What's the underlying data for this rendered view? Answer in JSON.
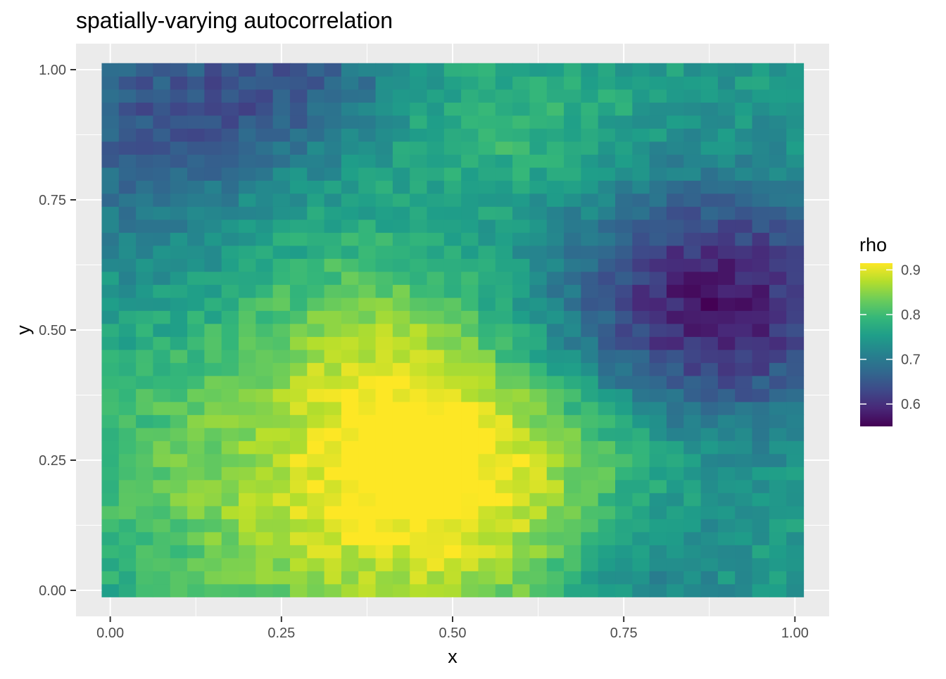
{
  "chart_data": {
    "type": "heatmap",
    "title": "spatially-varying autocorrelation",
    "xlabel": "x",
    "ylabel": "y",
    "xlim": [
      -0.05,
      1.05
    ],
    "ylim": [
      -0.05,
      1.05
    ],
    "x_ticks": [
      {
        "value": 0.0,
        "label": "0.00"
      },
      {
        "value": 0.25,
        "label": "0.25"
      },
      {
        "value": 0.5,
        "label": "0.50"
      },
      {
        "value": 0.75,
        "label": "0.75"
      },
      {
        "value": 1.0,
        "label": "1.00"
      }
    ],
    "y_ticks": [
      {
        "value": 0.0,
        "label": "0.00"
      },
      {
        "value": 0.25,
        "label": "0.25"
      },
      {
        "value": 0.5,
        "label": "0.50"
      },
      {
        "value": 0.75,
        "label": "0.75"
      },
      {
        "value": 1.0,
        "label": "1.00"
      }
    ],
    "grid": true,
    "background_color": "#EBEBEB",
    "grid_color": "#FFFFFF",
    "legend": {
      "title": "rho",
      "position": "right",
      "range": [
        0.55,
        0.915
      ],
      "ticks": [
        {
          "value": 0.6,
          "label": "0.6"
        },
        {
          "value": 0.7,
          "label": "0.7"
        },
        {
          "value": 0.8,
          "label": "0.8"
        },
        {
          "value": 0.9,
          "label": "0.9"
        }
      ]
    },
    "colormap": "viridis",
    "colormap_stops": [
      "#440154",
      "#482878",
      "#3E4A89",
      "#31688E",
      "#26828E",
      "#1F9E89",
      "#35B779",
      "#6DCD59",
      "#B4DE2C",
      "#FDE725"
    ],
    "grid_x": {
      "start": 0.0,
      "step": 0.025,
      "count": 41
    },
    "grid_y": {
      "start": 0.0,
      "step": 0.025,
      "count": 41
    },
    "field_description": "rho over [0,1]x[0,1]; bright yellow cluster (~0.9) near x 0.35-0.6, y 0.05-0.5; dark purple (~0.56-0.62) toward x 0.75-1.0, y 0.4-0.7; teal/blue (~0.68-0.72) along the top-left edge",
    "field_model": {
      "base": 0.75,
      "terms": [
        {
          "amp": 0.13,
          "cx": 0.45,
          "cy": 0.12,
          "sx": 0.22,
          "sy": 0.18
        },
        {
          "amp": 0.09,
          "cx": 0.4,
          "cy": 0.45,
          "sx": 0.12,
          "sy": 0.15
        },
        {
          "amp": 0.07,
          "cx": 0.55,
          "cy": 0.28,
          "sx": 0.15,
          "sy": 0.12
        },
        {
          "amp": 0.05,
          "cx": 0.12,
          "cy": 0.3,
          "sx": 0.18,
          "sy": 0.22
        },
        {
          "amp": 0.05,
          "cx": 0.55,
          "cy": 0.9,
          "sx": 0.15,
          "sy": 0.1
        },
        {
          "amp": -0.18,
          "cx": 0.88,
          "cy": 0.55,
          "sx": 0.15,
          "sy": 0.16
        },
        {
          "amp": -0.09,
          "cx": 0.1,
          "cy": 0.93,
          "sx": 0.2,
          "sy": 0.12
        },
        {
          "amp": -0.05,
          "cx": 0.3,
          "cy": 0.98,
          "sx": 0.12,
          "sy": 0.08
        },
        {
          "amp": -0.06,
          "cx": 0.78,
          "cy": 0.05,
          "sx": 0.1,
          "sy": 0.1
        },
        {
          "amp": -0.04,
          "cx": 0.05,
          "cy": 0.7,
          "sx": 0.1,
          "sy": 0.15
        }
      ],
      "noise_amp": 0.025,
      "clamp": [
        0.55,
        0.915
      ]
    }
  }
}
